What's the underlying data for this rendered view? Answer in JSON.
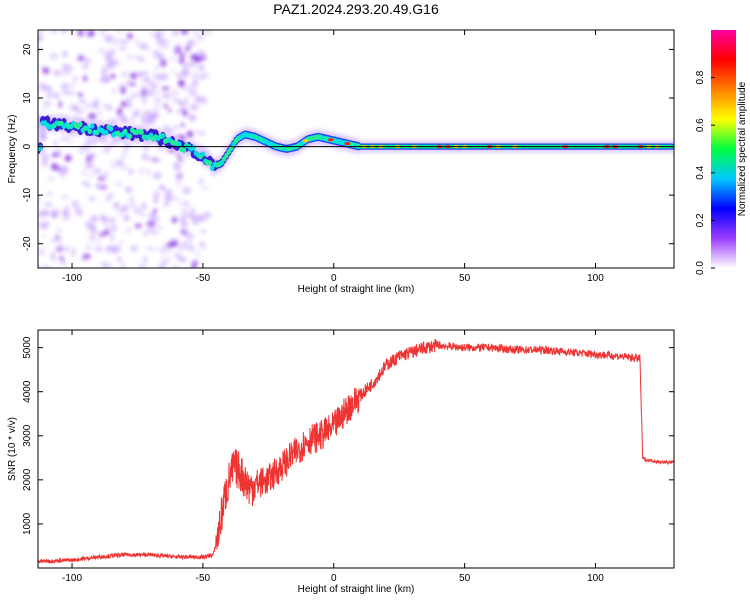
{
  "title": "PAZ1.2024.293.20.49.G16",
  "chart_data": [
    {
      "type": "heatmap",
      "xlabel": "Height of straight line (km)",
      "ylabel": "Frequency (Hz)",
      "xlim": [
        -113,
        130
      ],
      "ylim": [
        -25,
        24
      ],
      "x_ticks": [
        -100,
        -50,
        0,
        50,
        100
      ],
      "x_tick_labels": [
        "-100",
        "-50",
        "0",
        "50",
        "100"
      ],
      "y_ticks": [
        -20,
        -10,
        0,
        10,
        20
      ],
      "y_tick_labels": [
        "-20",
        "-10",
        "0",
        "10",
        "20"
      ],
      "colorbar": {
        "label": "Normalized spectral amplitude",
        "range": [
          0,
          1
        ],
        "ticks": [
          0.0,
          0.2,
          0.4,
          0.6,
          0.8
        ],
        "tick_labels": [
          "0.0",
          "0.2",
          "0.4",
          "0.6",
          "0.8"
        ],
        "colormap": [
          "#ffffff",
          "#9b3cff",
          "#0000ff",
          "#00c8ff",
          "#00ff40",
          "#ffff00",
          "#ff7f00",
          "#ff0000",
          "#ff00a0"
        ]
      },
      "ridge": {
        "x": [
          -112,
          -105,
          -98,
          -90,
          -82,
          -75,
          -68,
          -60,
          -55,
          -50,
          -46,
          -43,
          -40,
          -37,
          -34,
          -30,
          -26,
          -22,
          -18,
          -14,
          -10,
          -6,
          -2,
          2,
          6,
          10,
          130
        ],
        "y": [
          5,
          4.5,
          4,
          3.5,
          3,
          2.5,
          2,
          0.5,
          -0.5,
          -2,
          -4,
          -3.5,
          -1,
          1.5,
          2.5,
          2,
          1,
          0,
          -0.5,
          0,
          1.5,
          2,
          1.5,
          1,
          0.5,
          0,
          0
        ]
      },
      "reference_line_y": 0
    },
    {
      "type": "line",
      "xlabel": "Height of straight line (km)",
      "ylabel": "SNR (10 * v/v)",
      "xlim": [
        -113,
        130
      ],
      "ylim": [
        0,
        5400
      ],
      "x_ticks": [
        -100,
        -50,
        0,
        50,
        100
      ],
      "x_tick_labels": [
        "-100",
        "-50",
        "0",
        "50",
        "100"
      ],
      "y_ticks": [
        1000,
        2000,
        3000,
        4000,
        5000
      ],
      "y_tick_labels": [
        "1000",
        "2000",
        "3000",
        "4000",
        "5000"
      ],
      "series": [
        {
          "color": "#ee3333",
          "x": [
            -113,
            -100,
            -90,
            -80,
            -70,
            -60,
            -50,
            -46,
            -44,
            -42,
            -40,
            -38,
            -36,
            -34,
            -32,
            -30,
            -25,
            -20,
            -15,
            -10,
            -5,
            0,
            5,
            10,
            15,
            20,
            25,
            30,
            35,
            40,
            50,
            60,
            70,
            80,
            90,
            100,
            110,
            117,
            118,
            119,
            120,
            125,
            130
          ],
          "y": [
            150,
            180,
            250,
            300,
            300,
            250,
            250,
            300,
            800,
            1500,
            2000,
            2300,
            2200,
            2000,
            1800,
            1900,
            2000,
            2300,
            2600,
            2900,
            3000,
            3200,
            3600,
            3900,
            4200,
            4600,
            4800,
            4900,
            5000,
            5050,
            5000,
            5000,
            4950,
            4950,
            4900,
            4850,
            4800,
            4750,
            2500,
            2450,
            2450,
            2400,
            2400
          ]
        }
      ]
    }
  ]
}
